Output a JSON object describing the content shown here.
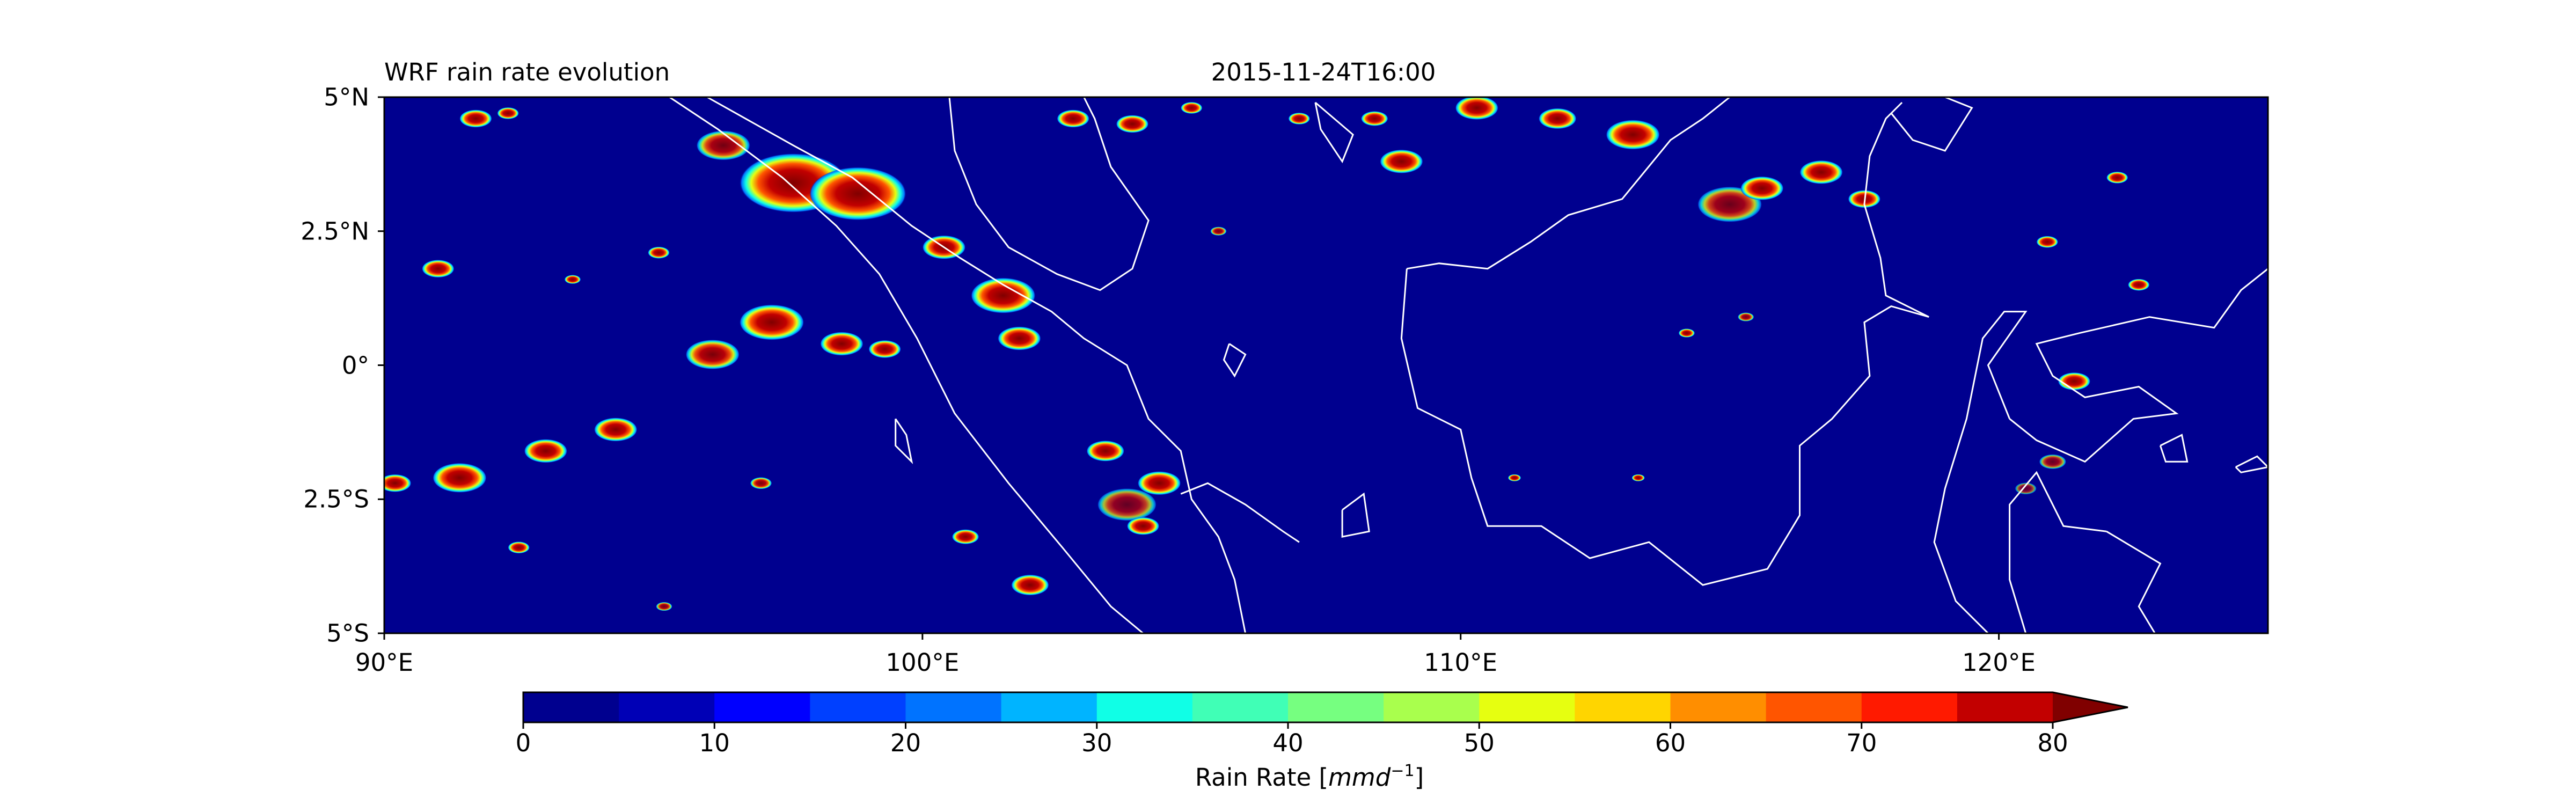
{
  "title_left": "WRF rain rate evolution",
  "title_center": "2015-11-24T16:00",
  "map": {
    "lon_range": [
      90,
      125
    ],
    "lat_range": [
      -5,
      5
    ],
    "background_color": "#00008f",
    "coastline_color": "#ffffff",
    "y_ticks": [
      {
        "value": 5,
        "label": "5°N"
      },
      {
        "value": 2.5,
        "label": "2.5°N"
      },
      {
        "value": 0,
        "label": "0°"
      },
      {
        "value": -2.5,
        "label": "2.5°S"
      },
      {
        "value": -5,
        "label": "5°S"
      }
    ],
    "x_ticks": [
      {
        "value": 90,
        "label": "90°E"
      },
      {
        "value": 100,
        "label": "100°E"
      },
      {
        "value": 110,
        "label": "110°E"
      },
      {
        "value": 120,
        "label": "120°E"
      }
    ]
  },
  "colorbar": {
    "label_prefix": "Rain Rate [",
    "label_unit": "mmd",
    "label_exp": "−1",
    "label_suffix": "]",
    "range": [
      0,
      80
    ],
    "extend": "max",
    "levels": [
      0,
      5,
      10,
      15,
      20,
      25,
      30,
      35,
      40,
      45,
      50,
      55,
      60,
      65,
      70,
      75,
      80
    ],
    "colors": [
      "#00008f",
      "#0000b6",
      "#0000ff",
      "#0040ff",
      "#0073ff",
      "#00b4ff",
      "#10ffe6",
      "#40ffb6",
      "#76ff80",
      "#a9ff4d",
      "#e6ff10",
      "#ffd500",
      "#ff8e00",
      "#ff5500",
      "#ff1a00",
      "#c20000"
    ],
    "extend_color": "#800000",
    "ticks": [
      {
        "value": 0,
        "label": "0"
      },
      {
        "value": 10,
        "label": "10"
      },
      {
        "value": 20,
        "label": "20"
      },
      {
        "value": 30,
        "label": "30"
      },
      {
        "value": 40,
        "label": "40"
      },
      {
        "value": 50,
        "label": "50"
      },
      {
        "value": 60,
        "label": "60"
      },
      {
        "value": 70,
        "label": "70"
      },
      {
        "value": 80,
        "label": "80"
      }
    ]
  },
  "rain_cells": [
    {
      "lon": 97.6,
      "lat": 3.4,
      "r": 1.0,
      "intensity": 95
    },
    {
      "lon": 98.8,
      "lat": 3.2,
      "r": 0.9,
      "intensity": 90
    },
    {
      "lon": 96.3,
      "lat": 4.1,
      "r": 0.5,
      "intensity": 70
    },
    {
      "lon": 100.4,
      "lat": 2.2,
      "r": 0.4,
      "intensity": 85
    },
    {
      "lon": 101.5,
      "lat": 1.3,
      "r": 0.6,
      "intensity": 92
    },
    {
      "lon": 101.8,
      "lat": 0.5,
      "r": 0.4,
      "intensity": 80
    },
    {
      "lon": 97.2,
      "lat": 0.8,
      "r": 0.6,
      "intensity": 85
    },
    {
      "lon": 96.1,
      "lat": 0.2,
      "r": 0.5,
      "intensity": 75
    },
    {
      "lon": 98.5,
      "lat": 0.4,
      "r": 0.4,
      "intensity": 90
    },
    {
      "lon": 99.3,
      "lat": 0.3,
      "r": 0.3,
      "intensity": 80
    },
    {
      "lon": 94.3,
      "lat": -1.2,
      "r": 0.4,
      "intensity": 85
    },
    {
      "lon": 93.0,
      "lat": -1.6,
      "r": 0.4,
      "intensity": 80
    },
    {
      "lon": 91.4,
      "lat": -2.1,
      "r": 0.5,
      "intensity": 85
    },
    {
      "lon": 90.2,
      "lat": -2.2,
      "r": 0.3,
      "intensity": 90
    },
    {
      "lon": 91.0,
      "lat": 1.8,
      "r": 0.3,
      "intensity": 80
    },
    {
      "lon": 91.7,
      "lat": 4.6,
      "r": 0.3,
      "intensity": 90
    },
    {
      "lon": 92.3,
      "lat": 4.7,
      "r": 0.2,
      "intensity": 80
    },
    {
      "lon": 102.8,
      "lat": 4.6,
      "r": 0.3,
      "intensity": 80
    },
    {
      "lon": 103.9,
      "lat": 4.5,
      "r": 0.3,
      "intensity": 90
    },
    {
      "lon": 104.4,
      "lat": -2.2,
      "r": 0.4,
      "intensity": 95
    },
    {
      "lon": 103.8,
      "lat": -2.6,
      "r": 0.55,
      "intensity": 60
    },
    {
      "lon": 103.4,
      "lat": -1.6,
      "r": 0.35,
      "intensity": 85
    },
    {
      "lon": 104.1,
      "lat": -3.0,
      "r": 0.3,
      "intensity": 80
    },
    {
      "lon": 102.0,
      "lat": -4.1,
      "r": 0.35,
      "intensity": 90
    },
    {
      "lon": 100.8,
      "lat": -3.2,
      "r": 0.25,
      "intensity": 80
    },
    {
      "lon": 108.9,
      "lat": 3.8,
      "r": 0.4,
      "intensity": 80
    },
    {
      "lon": 108.4,
      "lat": 4.6,
      "r": 0.25,
      "intensity": 85
    },
    {
      "lon": 110.3,
      "lat": 4.8,
      "r": 0.4,
      "intensity": 90
    },
    {
      "lon": 111.8,
      "lat": 4.6,
      "r": 0.35,
      "intensity": 85
    },
    {
      "lon": 113.2,
      "lat": 4.3,
      "r": 0.5,
      "intensity": 80
    },
    {
      "lon": 115.0,
      "lat": 3.0,
      "r": 0.6,
      "intensity": 65
    },
    {
      "lon": 115.6,
      "lat": 3.3,
      "r": 0.4,
      "intensity": 90
    },
    {
      "lon": 116.7,
      "lat": 3.6,
      "r": 0.4,
      "intensity": 85
    },
    {
      "lon": 117.5,
      "lat": 3.1,
      "r": 0.3,
      "intensity": 90
    },
    {
      "lon": 105.0,
      "lat": 4.8,
      "r": 0.2,
      "intensity": 80
    },
    {
      "lon": 107.0,
      "lat": 4.6,
      "r": 0.2,
      "intensity": 80
    },
    {
      "lon": 121.4,
      "lat": -0.3,
      "r": 0.3,
      "intensity": 90
    },
    {
      "lon": 120.9,
      "lat": 2.3,
      "r": 0.2,
      "intensity": 80
    },
    {
      "lon": 122.2,
      "lat": 3.5,
      "r": 0.2,
      "intensity": 85
    },
    {
      "lon": 122.6,
      "lat": 1.5,
      "r": 0.2,
      "intensity": 80
    },
    {
      "lon": 121.0,
      "lat": -1.8,
      "r": 0.25,
      "intensity": 60
    },
    {
      "lon": 120.5,
      "lat": -2.3,
      "r": 0.2,
      "intensity": 50
    },
    {
      "lon": 111.0,
      "lat": -2.1,
      "r": 0.12,
      "intensity": 80
    },
    {
      "lon": 113.3,
      "lat": -2.1,
      "r": 0.12,
      "intensity": 80
    },
    {
      "lon": 115.3,
      "lat": 0.9,
      "r": 0.15,
      "intensity": 70
    },
    {
      "lon": 114.2,
      "lat": 0.6,
      "r": 0.15,
      "intensity": 80
    },
    {
      "lon": 105.5,
      "lat": 2.5,
      "r": 0.15,
      "intensity": 70
    },
    {
      "lon": 95.1,
      "lat": 2.1,
      "r": 0.2,
      "intensity": 85
    },
    {
      "lon": 93.5,
      "lat": 1.6,
      "r": 0.15,
      "intensity": 80
    },
    {
      "lon": 92.5,
      "lat": -3.4,
      "r": 0.2,
      "intensity": 85
    },
    {
      "lon": 97.0,
      "lat": -2.2,
      "r": 0.2,
      "intensity": 75
    },
    {
      "lon": 95.2,
      "lat": -4.5,
      "r": 0.15,
      "intensity": 70
    }
  ],
  "coastlines": [
    [
      [
        95.3,
        5.0
      ],
      [
        96.2,
        4.4
      ],
      [
        97.4,
        3.5
      ],
      [
        98.4,
        2.6
      ],
      [
        99.2,
        1.7
      ],
      [
        99.9,
        0.5
      ],
      [
        100.6,
        -0.9
      ],
      [
        101.6,
        -2.2
      ],
      [
        102.6,
        -3.4
      ],
      [
        103.5,
        -4.5
      ],
      [
        104.1,
        -5.0
      ]
    ],
    [
      [
        96.0,
        5.0
      ],
      [
        97.6,
        4.1
      ],
      [
        98.7,
        3.5
      ],
      [
        99.8,
        2.6
      ],
      [
        100.7,
        2.0
      ],
      [
        101.5,
        1.5
      ],
      [
        102.4,
        1.0
      ],
      [
        103.0,
        0.5
      ],
      [
        103.8,
        0.0
      ],
      [
        104.2,
        -1.0
      ],
      [
        104.8,
        -1.6
      ],
      [
        105.0,
        -2.5
      ],
      [
        105.5,
        -3.2
      ],
      [
        105.8,
        -4.0
      ],
      [
        106.0,
        -5.0
      ]
    ],
    [
      [
        100.5,
        5.0
      ],
      [
        100.6,
        4.0
      ],
      [
        101.0,
        3.0
      ],
      [
        101.6,
        2.2
      ],
      [
        102.5,
        1.7
      ],
      [
        103.3,
        1.4
      ],
      [
        103.9,
        1.8
      ],
      [
        104.2,
        2.7
      ],
      [
        103.5,
        3.7
      ],
      [
        103.2,
        4.6
      ],
      [
        103.0,
        5.0
      ]
    ],
    [
      [
        104.8,
        -2.4
      ],
      [
        105.3,
        -2.2
      ],
      [
        106.0,
        -2.6
      ],
      [
        106.7,
        -3.1
      ],
      [
        107.0,
        -3.3
      ]
    ],
    [
      [
        107.8,
        -2.7
      ],
      [
        108.2,
        -2.4
      ],
      [
        108.3,
        -3.1
      ],
      [
        107.8,
        -3.2
      ],
      [
        107.8,
        -2.7
      ]
    ],
    [
      [
        99.5,
        -1.0
      ],
      [
        99.7,
        -1.3
      ],
      [
        99.8,
        -1.8
      ],
      [
        99.5,
        -1.5
      ],
      [
        99.5,
        -1.0
      ]
    ],
    [
      [
        105.7,
        0.4
      ],
      [
        106.0,
        0.2
      ],
      [
        105.8,
        -0.2
      ],
      [
        105.6,
        0.1
      ],
      [
        105.7,
        0.4
      ]
    ],
    [
      [
        109.0,
        1.8
      ],
      [
        108.9,
        0.5
      ],
      [
        109.2,
        -0.8
      ],
      [
        110.0,
        -1.2
      ],
      [
        110.2,
        -2.1
      ],
      [
        110.5,
        -3.0
      ],
      [
        111.5,
        -3.0
      ],
      [
        112.4,
        -3.6
      ],
      [
        113.5,
        -3.3
      ],
      [
        114.5,
        -4.1
      ],
      [
        115.7,
        -3.8
      ],
      [
        116.3,
        -2.8
      ],
      [
        116.3,
        -1.5
      ],
      [
        116.9,
        -1.0
      ],
      [
        117.6,
        -0.2
      ],
      [
        117.5,
        0.8
      ],
      [
        118.0,
        1.1
      ],
      [
        118.7,
        0.9
      ],
      [
        117.9,
        1.3
      ],
      [
        117.8,
        2.0
      ],
      [
        117.5,
        3.0
      ],
      [
        117.6,
        3.9
      ],
      [
        117.9,
        4.6
      ],
      [
        118.2,
        4.9
      ]
    ],
    [
      [
        109.0,
        1.8
      ],
      [
        109.6,
        1.9
      ],
      [
        110.5,
        1.8
      ],
      [
        111.3,
        2.3
      ],
      [
        112.0,
        2.8
      ],
      [
        113.0,
        3.1
      ],
      [
        113.9,
        4.2
      ],
      [
        114.5,
        4.6
      ],
      [
        115.0,
        5.0
      ]
    ],
    [
      [
        107.3,
        4.9
      ],
      [
        107.4,
        4.4
      ],
      [
        107.8,
        3.8
      ],
      [
        108.0,
        4.3
      ],
      [
        107.3,
        4.9
      ]
    ],
    [
      [
        119.0,
        5.0
      ],
      [
        119.5,
        4.8
      ],
      [
        119.0,
        4.0
      ],
      [
        118.4,
        4.2
      ],
      [
        118.0,
        4.7
      ]
    ],
    [
      [
        122.0,
        -3.1
      ],
      [
        121.2,
        -3.0
      ],
      [
        120.7,
        -2.0
      ],
      [
        120.2,
        -2.6
      ],
      [
        120.2,
        -4.0
      ],
      [
        120.5,
        -5.0
      ]
    ],
    [
      [
        122.0,
        -3.1
      ],
      [
        123.0,
        -3.7
      ],
      [
        122.6,
        -4.5
      ],
      [
        122.9,
        -5.0
      ]
    ],
    [
      [
        120.2,
        -1.0
      ],
      [
        120.7,
        -1.4
      ],
      [
        121.6,
        -1.8
      ],
      [
        122.5,
        -1.0
      ],
      [
        123.3,
        -0.9
      ],
      [
        122.6,
        -0.4
      ],
      [
        121.6,
        -0.6
      ],
      [
        121.0,
        -0.2
      ],
      [
        120.7,
        0.4
      ],
      [
        121.5,
        0.6
      ],
      [
        122.8,
        0.9
      ],
      [
        124.0,
        0.7
      ],
      [
        124.5,
        1.4
      ],
      [
        125.0,
        1.8
      ]
    ],
    [
      [
        120.2,
        -1.0
      ],
      [
        119.8,
        0.0
      ],
      [
        120.5,
        1.0
      ],
      [
        120.1,
        1.0
      ],
      [
        119.7,
        0.5
      ],
      [
        119.4,
        -1.0
      ],
      [
        119.0,
        -2.3
      ],
      [
        118.8,
        -3.3
      ],
      [
        119.2,
        -4.4
      ],
      [
        119.8,
        -5.0
      ]
    ],
    [
      [
        123.0,
        -1.5
      ],
      [
        123.4,
        -1.3
      ],
      [
        123.5,
        -1.8
      ],
      [
        123.1,
        -1.8
      ],
      [
        123.0,
        -1.5
      ]
    ],
    [
      [
        124.4,
        -1.9
      ],
      [
        124.8,
        -1.7
      ],
      [
        125.0,
        -1.9
      ],
      [
        124.5,
        -2.0
      ],
      [
        124.4,
        -1.9
      ]
    ]
  ]
}
